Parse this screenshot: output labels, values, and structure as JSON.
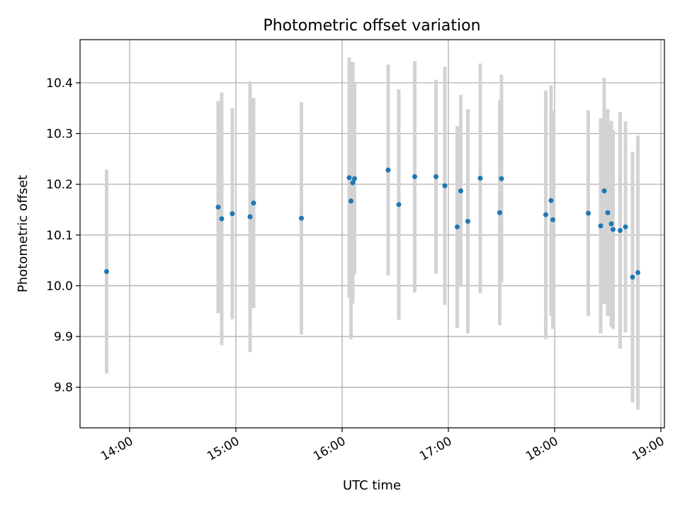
{
  "chart_data": {
    "type": "scatter",
    "title": "Photometric offset variation",
    "xlabel": "UTC time",
    "ylabel": "Photometric offset",
    "xlim": [
      "13:32",
      "19:02"
    ],
    "ylim": [
      9.72,
      10.485
    ],
    "grid": true,
    "x_ticks": [
      "14:00",
      "15:00",
      "16:00",
      "17:00",
      "18:00",
      "19:00"
    ],
    "y_ticks": [
      9.8,
      9.9,
      10.0,
      10.1,
      10.2,
      10.3,
      10.4
    ],
    "y_tick_labels": [
      "9.8",
      "9.9",
      "10.0",
      "10.1",
      "10.2",
      "10.3",
      "10.4"
    ],
    "marker_color": "#1f77b4",
    "errorbar_color": "#d3d3d3",
    "points": [
      {
        "t": "13:47",
        "y": 10.028,
        "err": 0.201
      },
      {
        "t": "14:50",
        "y": 10.155,
        "err": 0.209
      },
      {
        "t": "14:52",
        "y": 10.132,
        "err": 0.249
      },
      {
        "t": "14:58",
        "y": 10.142,
        "err": 0.208
      },
      {
        "t": "15:08",
        "y": 10.136,
        "err": 0.267
      },
      {
        "t": "15:10",
        "y": 10.163,
        "err": 0.207
      },
      {
        "t": "15:37",
        "y": 10.133,
        "err": 0.229
      },
      {
        "t": "16:04",
        "y": 10.213,
        "err": 0.237
      },
      {
        "t": "16:05",
        "y": 10.167,
        "err": 0.272
      },
      {
        "t": "16:06",
        "y": 10.203,
        "err": 0.238
      },
      {
        "t": "16:07",
        "y": 10.211,
        "err": 0.188
      },
      {
        "t": "16:26",
        "y": 10.228,
        "err": 0.208
      },
      {
        "t": "16:32",
        "y": 10.16,
        "err": 0.227
      },
      {
        "t": "16:41",
        "y": 10.215,
        "err": 0.228
      },
      {
        "t": "16:53",
        "y": 10.215,
        "err": 0.191
      },
      {
        "t": "16:58",
        "y": 10.197,
        "err": 0.235
      },
      {
        "t": "17:05",
        "y": 10.116,
        "err": 0.199
      },
      {
        "t": "17:07",
        "y": 10.187,
        "err": 0.189
      },
      {
        "t": "17:11",
        "y": 10.127,
        "err": 0.221
      },
      {
        "t": "17:18",
        "y": 10.212,
        "err": 0.226
      },
      {
        "t": "17:29",
        "y": 10.144,
        "err": 0.222
      },
      {
        "t": "17:30",
        "y": 10.211,
        "err": 0.205
      },
      {
        "t": "17:55",
        "y": 10.14,
        "err": 0.245
      },
      {
        "t": "17:58",
        "y": 10.168,
        "err": 0.227
      },
      {
        "t": "17:59",
        "y": 10.13,
        "err": 0.215
      },
      {
        "t": "18:19",
        "y": 10.143,
        "err": 0.203
      },
      {
        "t": "18:26",
        "y": 10.118,
        "err": 0.212
      },
      {
        "t": "18:28",
        "y": 10.187,
        "err": 0.223
      },
      {
        "t": "18:30",
        "y": 10.144,
        "err": 0.204
      },
      {
        "t": "18:32",
        "y": 10.122,
        "err": 0.203
      },
      {
        "t": "18:33",
        "y": 10.111,
        "err": 0.196
      },
      {
        "t": "18:37",
        "y": 10.109,
        "err": 0.233
      },
      {
        "t": "18:40",
        "y": 10.116,
        "err": 0.208
      },
      {
        "t": "18:44",
        "y": 10.017,
        "err": 0.247
      },
      {
        "t": "18:47",
        "y": 10.026,
        "err": 0.27
      }
    ]
  }
}
